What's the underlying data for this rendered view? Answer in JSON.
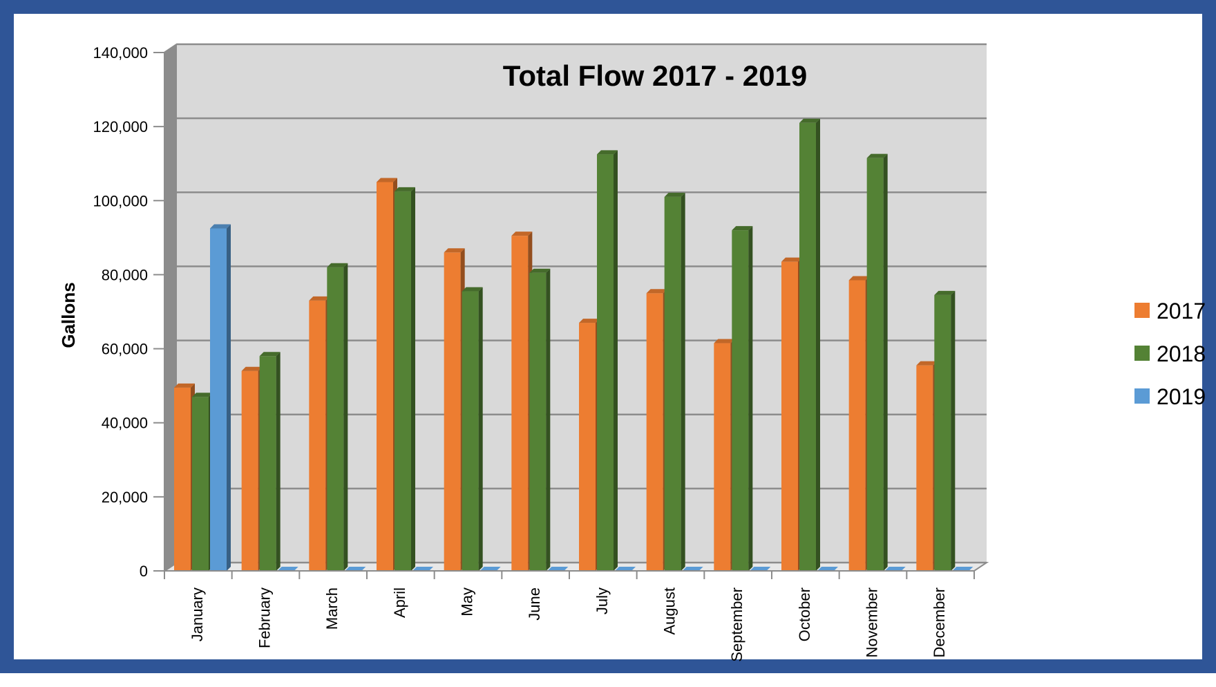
{
  "chart_data": {
    "type": "bar",
    "title": "Total Flow 2017 - 2019",
    "xlabel": "",
    "ylabel": "Gallons",
    "ylim": [
      0,
      140000
    ],
    "yticks": [
      0,
      20000,
      40000,
      60000,
      80000,
      100000,
      120000,
      140000
    ],
    "ytick_labels": [
      "0",
      "20,000",
      "40,000",
      "60,000",
      "80,000",
      "100,000",
      "120,000",
      "140,000"
    ],
    "grid": true,
    "legend_position": "right",
    "categories": [
      "January",
      "February",
      "March",
      "April",
      "May",
      "June",
      "July",
      "August",
      "September",
      "October",
      "November",
      "December"
    ],
    "series": [
      {
        "name": "2017",
        "color": "#ed7d31",
        "values": [
          49500,
          54000,
          73000,
          105000,
          86000,
          90500,
          67000,
          75000,
          61500,
          83500,
          78500,
          55500
        ]
      },
      {
        "name": "2018",
        "color": "#548235",
        "values": [
          47000,
          58000,
          82000,
          102500,
          75500,
          80500,
          112500,
          101000,
          92000,
          121000,
          111500,
          74500
        ]
      },
      {
        "name": "2019",
        "color": "#5b9bd5",
        "values": [
          92500,
          0,
          0,
          0,
          0,
          0,
          0,
          0,
          0,
          0,
          0,
          0
        ]
      }
    ]
  }
}
